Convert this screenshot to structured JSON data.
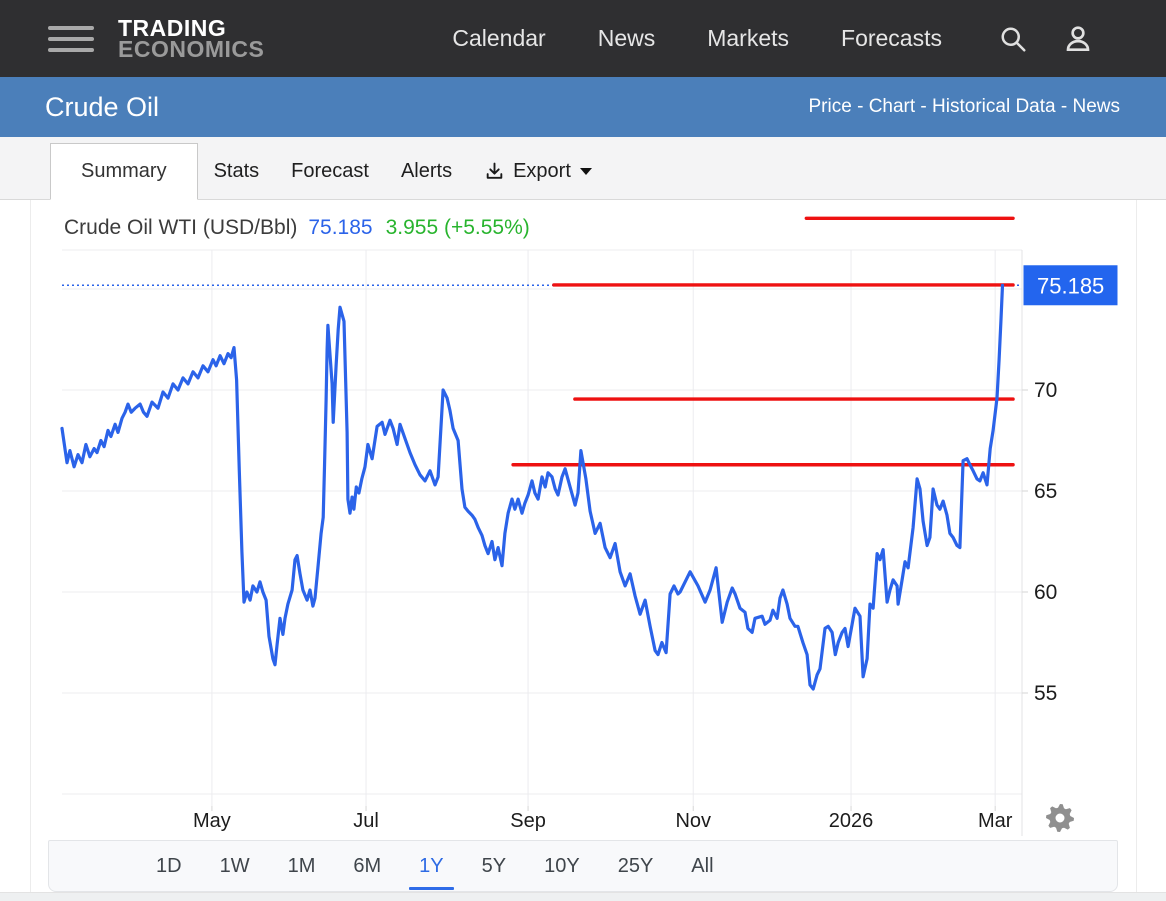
{
  "topnav": {
    "brand_line1": "TRADING",
    "brand_line2": "ECONOMICS",
    "links": [
      "Calendar",
      "News",
      "Markets",
      "Forecasts"
    ]
  },
  "subheader": {
    "title": "Crude Oil",
    "links": [
      "Price",
      "Chart",
      "Historical Data",
      "News"
    ],
    "separator": " - "
  },
  "tabs": {
    "items": [
      {
        "label": "Summary",
        "active": true
      },
      {
        "label": "Stats",
        "active": false
      },
      {
        "label": "Forecast",
        "active": false
      },
      {
        "label": "Alerts",
        "active": false
      },
      {
        "label": "Export",
        "active": false,
        "icon": "download",
        "caret": true
      }
    ]
  },
  "quote": {
    "name": "Crude Oil WTI (USD/Bbl)",
    "price": "75.185",
    "change": "3.955 (+5.55%)"
  },
  "range_selector": {
    "options": [
      "1D",
      "1W",
      "1M",
      "6M",
      "1Y",
      "5Y",
      "10Y",
      "25Y",
      "All"
    ],
    "active": "1Y"
  },
  "colors": {
    "line_blue": "#2b63e9",
    "price_label_bg": "#2365ee",
    "positive_green": "#28b42e",
    "annotation_red": "#ee1111",
    "grid": "#ececef",
    "axis_text": "#1c1c1c",
    "gear_gray": "#8f8f8f"
  },
  "chart_data": {
    "type": "line",
    "title": "Crude Oil WTI (USD/Bbl)",
    "current_price": 75.185,
    "change_abs": 3.955,
    "change_pct": "+5.55%",
    "legend": "none",
    "grid": true,
    "ylabel": "USD/Bbl",
    "ylim": [
      49.4,
      76.9
    ],
    "y_ticks": [
      70,
      65,
      60,
      55
    ],
    "y_gridlines": [
      75,
      70,
      65,
      60,
      55,
      50
    ],
    "x_total_days": 365,
    "x_ticks": [
      {
        "label": "May",
        "day": 57
      },
      {
        "label": "Jul",
        "day": 115.6
      },
      {
        "label": "Sep",
        "day": 177.2
      },
      {
        "label": "Nov",
        "day": 240
      },
      {
        "label": "2026",
        "day": 300
      },
      {
        "label": "Mar",
        "day": 354.8
      }
    ],
    "current_price_line": {
      "value": 75.185,
      "style": "dotted"
    },
    "annotation_lines": [
      {
        "value": 78.5,
        "from_day": 283,
        "to_day": 361.6
      },
      {
        "value": 75.2,
        "from_day": 187,
        "to_day": 361.6
      },
      {
        "value": 69.55,
        "from_day": 195,
        "to_day": 361.6
      },
      {
        "value": 66.3,
        "from_day": 171.5,
        "to_day": 361.6
      }
    ],
    "series": [
      {
        "name": "Crude Oil WTI",
        "points": [
          [
            0,
            68.1
          ],
          [
            1.9,
            66.4
          ],
          [
            3,
            67
          ],
          [
            4.6,
            66.2
          ],
          [
            6.1,
            66.8
          ],
          [
            7.6,
            66.4
          ],
          [
            9.1,
            67.3
          ],
          [
            10.6,
            66.7
          ],
          [
            12.2,
            67.1
          ],
          [
            13.3,
            66.9
          ],
          [
            14.8,
            67.5
          ],
          [
            16,
            67.2
          ],
          [
            17.5,
            68
          ],
          [
            18.6,
            67.7
          ],
          [
            20.2,
            68.3
          ],
          [
            21.3,
            67.9
          ],
          [
            22.8,
            68.6
          ],
          [
            24,
            68.9
          ],
          [
            25.1,
            69.3
          ],
          [
            26.3,
            68.9
          ],
          [
            27.8,
            69.1
          ],
          [
            29.7,
            69.3
          ],
          [
            31,
            68.9
          ],
          [
            32.3,
            68.7
          ],
          [
            34.2,
            69.4
          ],
          [
            36.5,
            69.1
          ],
          [
            38.4,
            69.9
          ],
          [
            40.3,
            69.6
          ],
          [
            42.2,
            70.3
          ],
          [
            44.1,
            70
          ],
          [
            46,
            70.6
          ],
          [
            47.9,
            70.3
          ],
          [
            49.8,
            70.9
          ],
          [
            51.7,
            70.6
          ],
          [
            53.6,
            71.2
          ],
          [
            55.5,
            70.9
          ],
          [
            57.4,
            71.5
          ],
          [
            58.6,
            71.2
          ],
          [
            60.1,
            71.7
          ],
          [
            61.6,
            71.3
          ],
          [
            63.1,
            71.8
          ],
          [
            64.3,
            71.6
          ],
          [
            65.4,
            72.1
          ],
          [
            66.4,
            70.5
          ],
          [
            67.4,
            66
          ],
          [
            68.4,
            62
          ],
          [
            69.2,
            59.5
          ],
          [
            70.3,
            60
          ],
          [
            71.5,
            59.6
          ],
          [
            72.6,
            60.3
          ],
          [
            74.1,
            60
          ],
          [
            75.3,
            60.5
          ],
          [
            76.4,
            60
          ],
          [
            77.6,
            59.6
          ],
          [
            78.7,
            57.8
          ],
          [
            80.2,
            56.7
          ],
          [
            81,
            56.4
          ],
          [
            81.8,
            57.4
          ],
          [
            82.9,
            58.7
          ],
          [
            84,
            57.9
          ],
          [
            84.8,
            58.7
          ],
          [
            85.9,
            59.4
          ],
          [
            87.5,
            60.1
          ],
          [
            88.6,
            61.6
          ],
          [
            89.4,
            61.8
          ],
          [
            90.5,
            60.9
          ],
          [
            91.6,
            60.1
          ],
          [
            93.2,
            59.6
          ],
          [
            94.3,
            60.1
          ],
          [
            95.4,
            59.3
          ],
          [
            96.2,
            59.7
          ],
          [
            97.3,
            61.2
          ],
          [
            98.5,
            62.9
          ],
          [
            99.3,
            63.7
          ],
          [
            99.8,
            66.2
          ],
          [
            100.4,
            69.5
          ],
          [
            100.8,
            72
          ],
          [
            101.1,
            73.2
          ],
          [
            102.7,
            70.3
          ],
          [
            103.1,
            68.4
          ],
          [
            104.2,
            71.2
          ],
          [
            105,
            73
          ],
          [
            105.7,
            74.1
          ],
          [
            107.2,
            73.4
          ],
          [
            108.4,
            67.9
          ],
          [
            108.7,
            64.6
          ],
          [
            109.5,
            63.9
          ],
          [
            110.3,
            64.7
          ],
          [
            111,
            64.1
          ],
          [
            111.9,
            65.2
          ],
          [
            112.9,
            64.9
          ],
          [
            114,
            65.6
          ],
          [
            115.2,
            66.2
          ],
          [
            116.3,
            67.3
          ],
          [
            117.9,
            66.6
          ],
          [
            119.8,
            68.2
          ],
          [
            121.7,
            68.4
          ],
          [
            122.8,
            67.8
          ],
          [
            124.7,
            68.5
          ],
          [
            125.9,
            68.1
          ],
          [
            127.4,
            67.3
          ],
          [
            128.5,
            68.3
          ],
          [
            130.4,
            67.6
          ],
          [
            132.3,
            66.9
          ],
          [
            134.2,
            66.3
          ],
          [
            136.1,
            65.8
          ],
          [
            138,
            65.5
          ],
          [
            139.9,
            66
          ],
          [
            141.8,
            65.3
          ],
          [
            143,
            65.7
          ],
          [
            144.9,
            70
          ],
          [
            146.4,
            69.6
          ],
          [
            147.5,
            69
          ],
          [
            148.7,
            68.1
          ],
          [
            150.6,
            67.5
          ],
          [
            152.1,
            65.1
          ],
          [
            153.2,
            64.2
          ],
          [
            154.4,
            64
          ],
          [
            155.9,
            63.8
          ],
          [
            157,
            63.6
          ],
          [
            158.2,
            63.2
          ],
          [
            159.7,
            62.8
          ],
          [
            160.8,
            62.3
          ],
          [
            162,
            61.9
          ],
          [
            163.5,
            62.5
          ],
          [
            164.6,
            61.6
          ],
          [
            165.8,
            62.2
          ],
          [
            167.3,
            61.3
          ],
          [
            168.4,
            62.9
          ],
          [
            169.6,
            63.9
          ],
          [
            171.1,
            64.6
          ],
          [
            172.2,
            64.1
          ],
          [
            173.4,
            64.6
          ],
          [
            174.9,
            63.9
          ],
          [
            176,
            64.4
          ],
          [
            177.2,
            64.8
          ],
          [
            178.7,
            65.5
          ],
          [
            179.8,
            64.9
          ],
          [
            181,
            64.6
          ],
          [
            182.5,
            65.7
          ],
          [
            183.7,
            65.2
          ],
          [
            184.8,
            65.9
          ],
          [
            186.3,
            65.7
          ],
          [
            187.5,
            65.1
          ],
          [
            188.6,
            64.8
          ],
          [
            190.1,
            65.7
          ],
          [
            191.3,
            66.1
          ],
          [
            193.2,
            65.2
          ],
          [
            195.1,
            64.3
          ],
          [
            196.2,
            64.9
          ],
          [
            197.3,
            67
          ],
          [
            199.2,
            65.6
          ],
          [
            200.8,
            64
          ],
          [
            202.7,
            62.9
          ],
          [
            204.6,
            63.4
          ],
          [
            206.5,
            62.2
          ],
          [
            208.4,
            61.7
          ],
          [
            210.3,
            62.4
          ],
          [
            212.2,
            61
          ],
          [
            214.1,
            60.3
          ],
          [
            216,
            60.9
          ],
          [
            217.9,
            59.8
          ],
          [
            219.8,
            58.9
          ],
          [
            221.7,
            59.6
          ],
          [
            223.6,
            58.3
          ],
          [
            225.5,
            57.1
          ],
          [
            226.6,
            56.9
          ],
          [
            228.1,
            57.5
          ],
          [
            229.7,
            57
          ],
          [
            231.2,
            59.9
          ],
          [
            232.7,
            60.3
          ],
          [
            234.2,
            59.9
          ],
          [
            235,
            60
          ],
          [
            238.8,
            61
          ],
          [
            241.8,
            60.3
          ],
          [
            244.5,
            59.5
          ],
          [
            246.4,
            60.1
          ],
          [
            248.7,
            61.2
          ],
          [
            251,
            58.5
          ],
          [
            252.9,
            59.5
          ],
          [
            254.8,
            60.2
          ],
          [
            255.9,
            59.9
          ],
          [
            257.8,
            59.2
          ],
          [
            259.7,
            59
          ],
          [
            260.8,
            58.2
          ],
          [
            262.4,
            58
          ],
          [
            263.5,
            58.7
          ],
          [
            266.2,
            58.8
          ],
          [
            267.3,
            58.4
          ],
          [
            269.2,
            58.6
          ],
          [
            270.3,
            59.1
          ],
          [
            271.9,
            58.7
          ],
          [
            273,
            59.7
          ],
          [
            274.1,
            60.1
          ],
          [
            275.7,
            59.4
          ],
          [
            276.8,
            58.7
          ],
          [
            278.7,
            58.3
          ],
          [
            279.8,
            58.3
          ],
          [
            281.7,
            57.5
          ],
          [
            283.3,
            56.9
          ],
          [
            284.4,
            55.4
          ],
          [
            285.6,
            55.2
          ],
          [
            287.1,
            55.9
          ],
          [
            288.2,
            56.2
          ],
          [
            290.1,
            58.2
          ],
          [
            291.3,
            58.3
          ],
          [
            292.8,
            58
          ],
          [
            294,
            56.9
          ],
          [
            295.1,
            57.5
          ],
          [
            296.6,
            58
          ],
          [
            297.7,
            58.2
          ],
          [
            298.9,
            57.3
          ],
          [
            300.4,
            58.4
          ],
          [
            301.5,
            59.2
          ],
          [
            303.4,
            58.8
          ],
          [
            304.6,
            55.8
          ],
          [
            306.1,
            56.7
          ],
          [
            307.2,
            59.4
          ],
          [
            308.4,
            59.2
          ],
          [
            309.9,
            61.9
          ],
          [
            311,
            61.6
          ],
          [
            312.2,
            62.1
          ],
          [
            313.7,
            59.5
          ],
          [
            314.8,
            60.1
          ],
          [
            316,
            60.6
          ],
          [
            317.5,
            60.3
          ],
          [
            317.9,
            59.4
          ],
          [
            319.4,
            60.6
          ],
          [
            320.5,
            61.5
          ],
          [
            321.7,
            61.2
          ],
          [
            323.6,
            63.2
          ],
          [
            325.1,
            65.6
          ],
          [
            326.2,
            65.1
          ],
          [
            327.4,
            63.5
          ],
          [
            328.9,
            62.3
          ],
          [
            330,
            62.7
          ],
          [
            331.2,
            65.1
          ],
          [
            332.7,
            64.3
          ],
          [
            333.8,
            64.1
          ],
          [
            335,
            64.5
          ],
          [
            336.5,
            63.8
          ],
          [
            337.6,
            62.9
          ],
          [
            338.8,
            62.7
          ],
          [
            340.3,
            62.3
          ],
          [
            341.4,
            62.2
          ],
          [
            342.6,
            66.5
          ],
          [
            344.1,
            66.6
          ],
          [
            345.2,
            66.3
          ],
          [
            346.4,
            66
          ],
          [
            347.9,
            65.6
          ],
          [
            349,
            65.5
          ],
          [
            350.2,
            65.9
          ],
          [
            351.7,
            65.3
          ],
          [
            352.9,
            67.1
          ],
          [
            354,
            68
          ],
          [
            355.5,
            69.6
          ],
          [
            356.3,
            71.5
          ],
          [
            357,
            73.5
          ],
          [
            357.6,
            75.185
          ]
        ]
      }
    ]
  }
}
